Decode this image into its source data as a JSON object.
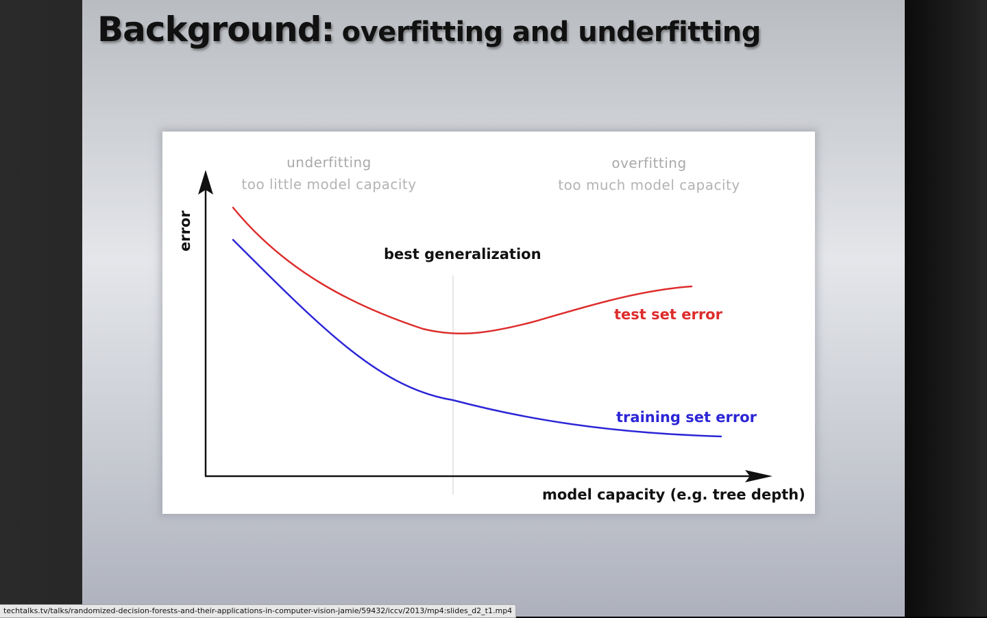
{
  "slide": {
    "title_lead": "Background:",
    "title_rest": "overfitting and underfitting"
  },
  "figure": {
    "region_left": {
      "title": "underfitting",
      "subtitle": "too little model capacity"
    },
    "region_right": {
      "title": "overfitting",
      "subtitle": "too much model capacity"
    },
    "best_label": "best generalization",
    "y_axis_label": "error",
    "x_axis_label": "model capacity (e.g. tree depth)",
    "test_label": "test set error",
    "train_label": "training set error",
    "colors": {
      "test": "#dd2c2c",
      "train": "#2b25d6",
      "axis": "#111111",
      "divider": "#cfcfcf"
    }
  },
  "status_bar": {
    "url": "techtalks.tv/talks/randomized-decision-forests-and-their-applications-in-computer-vision-jamie/59432/iccv/2013/mp4:slides_d2_t1.mp4"
  }
}
